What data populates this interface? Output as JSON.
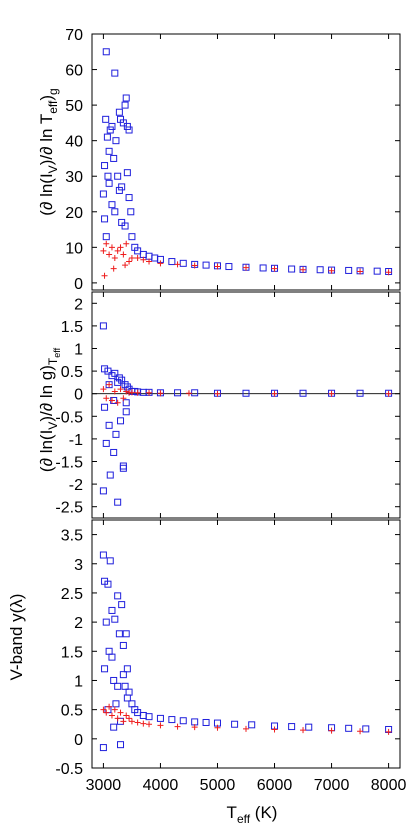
{
  "colors": {
    "blue_squares": "#1f1fdc",
    "red_crosses": "#ee1c1c",
    "axes": "#000000"
  },
  "chart_data": [
    {
      "type": "scatter",
      "ylabel": "(∂ ln(I_V)/∂ ln T_eff)_g",
      "ylabel_parts": {
        "main": "(∂ ln(I",
        "sub1": "V",
        "mid": ")/∂ ln T",
        "sub2": "eff",
        "end": ")",
        "sub3": "g"
      },
      "xlim": [
        2800,
        8200
      ],
      "ylim": [
        -2,
        70
      ],
      "yticks": [
        0,
        10,
        20,
        30,
        40,
        50,
        60,
        70
      ],
      "yticklabels": [
        "0",
        "10",
        "20",
        "30",
        "40",
        "50",
        "60",
        "70"
      ],
      "series": [
        {
          "marker": "square",
          "color": "#1f1fdc",
          "x": [
            3000,
            3020,
            3040,
            3050,
            3070,
            3080,
            3100,
            3120,
            3150,
            3180,
            3200,
            3220,
            3250,
            3280,
            3300,
            3320,
            3350,
            3380,
            3400,
            3420,
            3450,
            3480,
            3500,
            3550,
            3600,
            3700,
            3800,
            3900,
            4000,
            4200,
            4400,
            4600,
            4800,
            5000,
            5200,
            5500,
            5800,
            6000,
            6300,
            6500,
            6800,
            7000,
            7300,
            7500,
            7800,
            8000,
            3020,
            3050,
            3150,
            3280,
            3380,
            3420,
            3100,
            3200,
            3320,
            3450
          ],
          "y": [
            25,
            33,
            46,
            65,
            41,
            30,
            37,
            43,
            44,
            35,
            59,
            40,
            30,
            48,
            46,
            27,
            45,
            50,
            52,
            44,
            43,
            20,
            13,
            10,
            9,
            8,
            7.5,
            7,
            6.6,
            6,
            5.5,
            5.2,
            5.0,
            4.8,
            4.6,
            4.4,
            4.2,
            4.1,
            3.9,
            3.8,
            3.7,
            3.6,
            3.5,
            3.4,
            3.3,
            3.2,
            18,
            13,
            22,
            26,
            16,
            31,
            28,
            20,
            17,
            24
          ]
        },
        {
          "marker": "cross",
          "color": "#ee1c1c",
          "x": [
            3000,
            3050,
            3100,
            3150,
            3200,
            3250,
            3300,
            3350,
            3400,
            3450,
            3500,
            3600,
            3700,
            3800,
            4000,
            4300,
            4600,
            5000,
            5500,
            6000,
            6500,
            7000,
            7500,
            8000,
            3020,
            3180,
            3380
          ],
          "y": [
            9,
            11,
            8,
            10,
            7,
            9,
            10,
            8,
            11,
            6,
            7,
            7,
            6.5,
            6,
            5.5,
            5.2,
            4.9,
            4.6,
            4.3,
            4.0,
            3.7,
            3.4,
            3.2,
            3.0,
            2,
            4,
            5
          ]
        }
      ]
    },
    {
      "type": "scatter",
      "ylabel": "(∂ ln(I_V)/∂ ln g)_T_eff",
      "ylabel_parts": {
        "main": "(∂ ln(I",
        "sub1": "V",
        "mid": ")/∂ ln g)",
        "sub2": "T",
        "subsub": "eff"
      },
      "xlim": [
        2800,
        8200
      ],
      "ylim": [
        -2.75,
        2.25
      ],
      "yticks": [
        -2.5,
        -2,
        -1.5,
        -1,
        -0.5,
        0,
        0.5,
        1,
        1.5,
        2
      ],
      "yticklabels": [
        "-2.5",
        "-2",
        "-1.5",
        "-1",
        "-0.5",
        "0",
        "0.5",
        "1",
        "1.5",
        "2"
      ],
      "series": [
        {
          "marker": "square",
          "color": "#1f1fdc",
          "x": [
            3000,
            3000,
            3020,
            3050,
            3080,
            3100,
            3120,
            3150,
            3180,
            3200,
            3220,
            3250,
            3280,
            3300,
            3320,
            3350,
            3380,
            3400,
            3420,
            3450,
            3500,
            3550,
            3600,
            3700,
            3800,
            4000,
            4300,
            4600,
            5000,
            5500,
            6000,
            6500,
            7000,
            7500,
            8000,
            3020,
            3100,
            3180,
            3250,
            3350,
            3400
          ],
          "y": [
            1.5,
            -2.15,
            0.55,
            -1.1,
            0.5,
            -0.7,
            -1.8,
            0.4,
            -1.3,
            0.45,
            -0.9,
            -2.4,
            0.35,
            -0.6,
            0.3,
            -1.65,
            0.2,
            -0.4,
            0.15,
            0.1,
            0.05,
            0.05,
            0.04,
            0.03,
            0.03,
            0.02,
            0.02,
            0.02,
            0.01,
            0.01,
            0.01,
            0.01,
            0.01,
            0.01,
            0.01,
            -0.3,
            0.2,
            -0.15,
            0.25,
            -1.6,
            -0.2
          ]
        },
        {
          "marker": "cross",
          "color": "#ee1c1c",
          "x": [
            3000,
            3050,
            3100,
            3150,
            3200,
            3250,
            3300,
            3350,
            3400,
            3450,
            3500,
            3600,
            3800,
            4000,
            4500,
            5000,
            6000,
            7000,
            8000
          ],
          "y": [
            0.1,
            -0.1,
            0.2,
            -0.15,
            0.05,
            -0.2,
            0.1,
            -0.1,
            0.05,
            0.02,
            0.03,
            0.02,
            0.02,
            0.01,
            0.01,
            0.0,
            0.0,
            0.0,
            0.0
          ]
        }
      ]
    },
    {
      "type": "scatter",
      "xlabel": "T_eff (K)",
      "xlabel_parts": {
        "main": "T",
        "sub": "eff",
        "end": " (K)"
      },
      "ylabel": "V-band y(λ)",
      "xlim": [
        2800,
        8200
      ],
      "ylim": [
        -0.5,
        3.75
      ],
      "xticks": [
        3000,
        4000,
        5000,
        6000,
        7000,
        8000
      ],
      "xticklabels": [
        "3000",
        "4000",
        "5000",
        "6000",
        "7000",
        "8000"
      ],
      "yticks": [
        -0.5,
        0,
        0.5,
        1,
        1.5,
        2,
        2.5,
        3,
        3.5
      ],
      "yticklabels": [
        "-0.5",
        "0",
        "0.5",
        "1",
        "1.5",
        "2",
        "2.5",
        "3",
        "3.5"
      ],
      "series": [
        {
          "marker": "square",
          "color": "#1f1fdc",
          "x": [
            3000,
            3000,
            3020,
            3050,
            3080,
            3100,
            3120,
            3150,
            3180,
            3200,
            3220,
            3250,
            3280,
            3300,
            3320,
            3350,
            3380,
            3400,
            3420,
            3450,
            3500,
            3550,
            3600,
            3700,
            3800,
            4000,
            4200,
            4400,
            4600,
            4800,
            5000,
            5300,
            5600,
            6000,
            6300,
            6600,
            7000,
            7300,
            7600,
            8000,
            3020,
            3080,
            3150,
            3250,
            3350,
            3420,
            3300,
            3180
          ],
          "y": [
            3.15,
            -0.15,
            2.7,
            2.0,
            2.65,
            1.5,
            3.05,
            2.2,
            1.0,
            2.05,
            0.6,
            2.45,
            1.8,
            -0.1,
            2.3,
            1.6,
            0.9,
            1.8,
            1.2,
            0.8,
            0.6,
            0.5,
            0.45,
            0.4,
            0.38,
            0.35,
            0.33,
            0.31,
            0.29,
            0.28,
            0.27,
            0.25,
            0.24,
            0.22,
            0.21,
            0.2,
            0.19,
            0.18,
            0.17,
            0.16,
            1.2,
            0.5,
            1.4,
            0.9,
            1.1,
            0.7,
            0.3,
            0.2
          ]
        },
        {
          "marker": "cross",
          "color": "#ee1c1c",
          "x": [
            3000,
            3050,
            3100,
            3150,
            3200,
            3250,
            3300,
            3350,
            3400,
            3450,
            3500,
            3600,
            3700,
            3800,
            4000,
            4300,
            4600,
            5000,
            5500,
            6000,
            6500,
            7000,
            7500,
            8000
          ],
          "y": [
            0.5,
            0.45,
            0.55,
            0.4,
            0.5,
            0.35,
            0.45,
            0.3,
            0.4,
            0.35,
            0.3,
            0.28,
            0.26,
            0.25,
            0.23,
            0.21,
            0.2,
            0.19,
            0.17,
            0.16,
            0.15,
            0.14,
            0.13,
            0.12
          ]
        }
      ]
    }
  ]
}
